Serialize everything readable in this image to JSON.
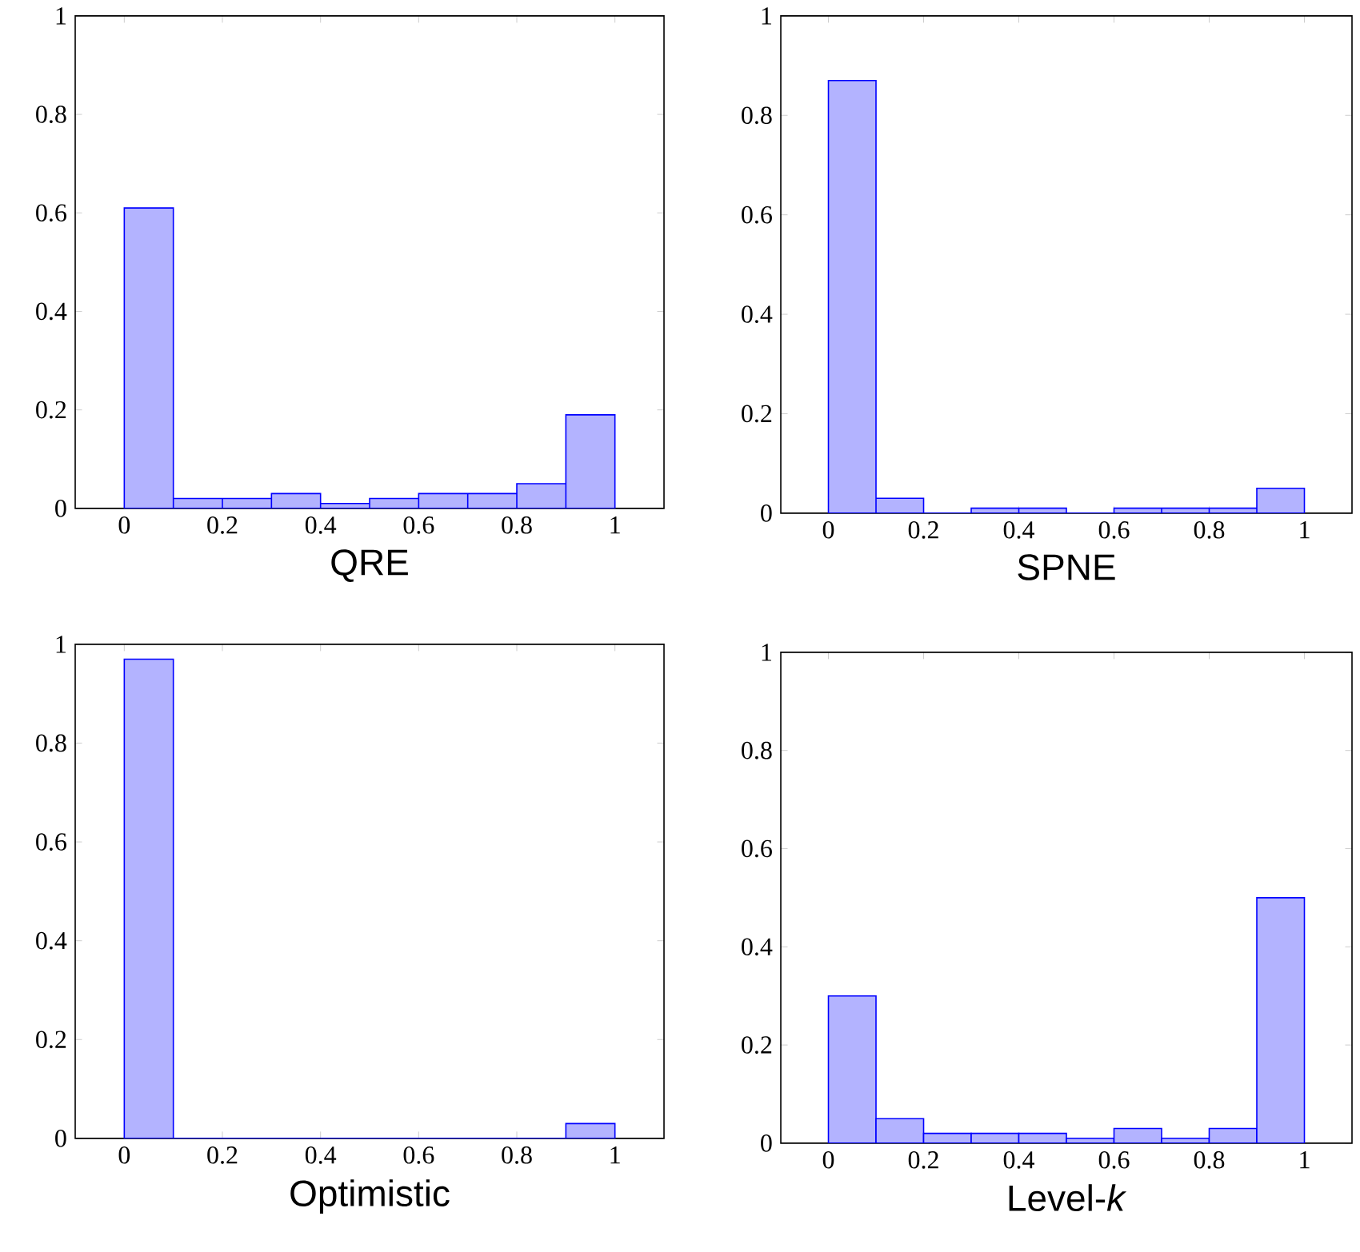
{
  "chart_data": [
    {
      "type": "histogram",
      "xlabel": "QRE",
      "bins": [
        0,
        0.1,
        0.2,
        0.3,
        0.4,
        0.5,
        0.6,
        0.7,
        0.8,
        0.9,
        1
      ],
      "values": [
        0.61,
        0.02,
        0.02,
        0.03,
        0.01,
        0.02,
        0.03,
        0.03,
        0.05,
        0.19
      ],
      "color": "#b3b3ff",
      "xlim": [
        -0.1,
        1.1
      ],
      "ylim": [
        0,
        1
      ],
      "xticks": [
        0,
        0.2,
        0.4,
        0.6,
        0.8,
        1
      ],
      "yticks": [
        0,
        0.2,
        0.4,
        0.6,
        0.8,
        1
      ]
    },
    {
      "type": "histogram",
      "xlabel": "SPNE",
      "bins": [
        0,
        0.1,
        0.2,
        0.3,
        0.4,
        0.5,
        0.6,
        0.7,
        0.8,
        0.9,
        1
      ],
      "values": [
        0.87,
        0.03,
        0,
        0.01,
        0.01,
        0,
        0.01,
        0.01,
        0.01,
        0.05
      ],
      "color": "#b3b3ff",
      "xlim": [
        -0.1,
        1.1
      ],
      "ylim": [
        0,
        1
      ],
      "xticks": [
        0,
        0.2,
        0.4,
        0.6,
        0.8,
        1
      ],
      "yticks": [
        0,
        0.2,
        0.4,
        0.6,
        0.8,
        1
      ]
    },
    {
      "type": "histogram",
      "xlabel": "Optimistic",
      "bins": [
        0,
        0.1,
        0.2,
        0.3,
        0.4,
        0.5,
        0.6,
        0.7,
        0.8,
        0.9,
        1
      ],
      "values": [
        0.97,
        0,
        0,
        0,
        0,
        0,
        0,
        0,
        0,
        0.03
      ],
      "color": "#b3b3ff",
      "xlim": [
        -0.1,
        1.1
      ],
      "ylim": [
        0,
        1
      ],
      "xticks": [
        0,
        0.2,
        0.4,
        0.6,
        0.8,
        1
      ],
      "yticks": [
        0,
        0.2,
        0.4,
        0.6,
        0.8,
        1
      ]
    },
    {
      "type": "histogram",
      "xlabel": "Level-*k*",
      "bins": [
        0,
        0.1,
        0.2,
        0.3,
        0.4,
        0.5,
        0.6,
        0.7,
        0.8,
        0.9,
        1
      ],
      "values": [
        0.3,
        0.05,
        0.02,
        0.02,
        0.02,
        0.01,
        0.03,
        0.01,
        0.03,
        0.5
      ],
      "color": "#b3b3ff",
      "xlim": [
        -0.1,
        1.1
      ],
      "ylim": [
        0,
        1
      ],
      "xticks": [
        0,
        0.2,
        0.4,
        0.6,
        0.8,
        1
      ],
      "yticks": [
        0,
        0.2,
        0.4,
        0.6,
        0.8,
        1
      ]
    }
  ]
}
